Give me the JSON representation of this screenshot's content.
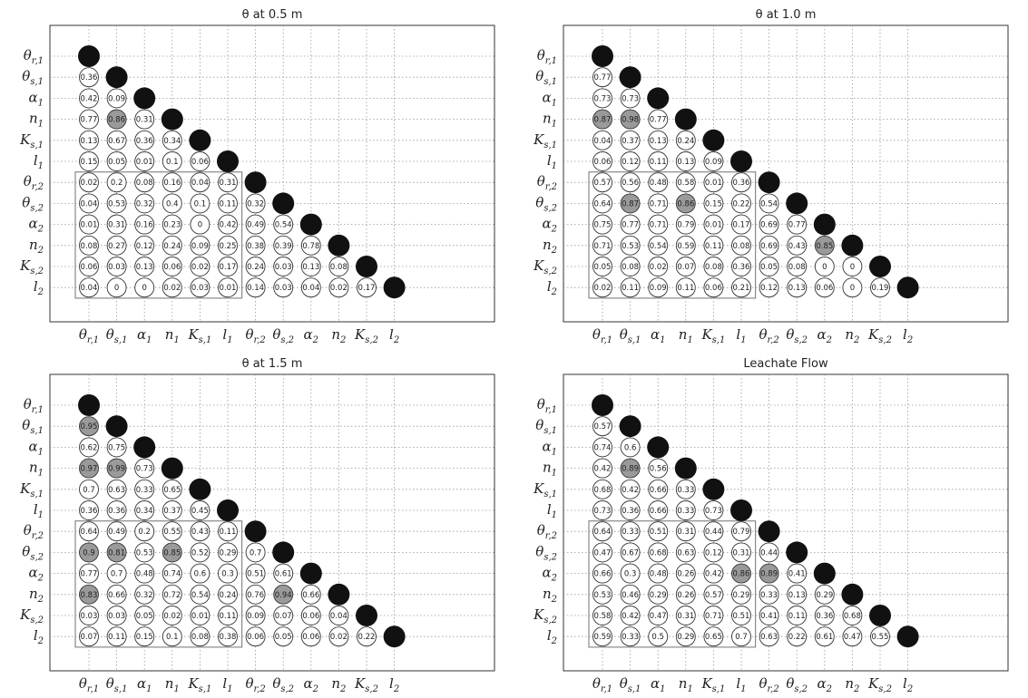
{
  "colors": {
    "diagonal": "#111111",
    "highlight": "#9a9a9a",
    "cell": "#ffffff",
    "grid": "#999999",
    "box": "#888888",
    "axes": "#333333"
  },
  "chart_data": [
    {
      "type": "heatmap",
      "title": "θ at 0.5 m",
      "labels": [
        "θr,1",
        "θs,1",
        "α1",
        "n1",
        "Ks,1",
        "l1",
        "θr,2",
        "θs,2",
        "α2",
        "n2",
        "Ks,2",
        "l2"
      ],
      "rows": [
        [],
        [
          0.36
        ],
        [
          0.42,
          0.09
        ],
        [
          0.77,
          0.86,
          0.31
        ],
        [
          0.13,
          0.67,
          0.36,
          0.34
        ],
        [
          0.15,
          0.05,
          0.01,
          0.1,
          0.06
        ],
        [
          0.02,
          0.2,
          0.08,
          0.16,
          0.04,
          0.31
        ],
        [
          0.04,
          0.53,
          0.32,
          0.4,
          0.1,
          0.11,
          0.32
        ],
        [
          0.01,
          0.31,
          0.16,
          0.23,
          0.0,
          0.42,
          0.49,
          0.54
        ],
        [
          0.08,
          0.27,
          0.12,
          0.24,
          0.09,
          0.25,
          0.38,
          0.39,
          0.78
        ],
        [
          0.06,
          0.03,
          0.13,
          0.06,
          0.02,
          0.17,
          0.24,
          0.03,
          0.13,
          0.08
        ],
        [
          0.04,
          0.0,
          0.0,
          0.02,
          0.03,
          0.01,
          0.14,
          0.03,
          0.04,
          0.02,
          0.17
        ]
      ],
      "highlighted": [
        [
          3,
          1
        ]
      ],
      "grid": true
    },
    {
      "type": "heatmap",
      "title": "θ at 1.0 m",
      "labels": [
        "θr,1",
        "θs,1",
        "α1",
        "n1",
        "Ks,1",
        "l1",
        "θr,2",
        "θs,2",
        "α2",
        "n2",
        "Ks,2",
        "l2"
      ],
      "rows": [
        [],
        [
          0.77
        ],
        [
          0.73,
          0.73
        ],
        [
          0.87,
          0.98,
          0.77
        ],
        [
          0.04,
          0.37,
          0.13,
          0.24
        ],
        [
          0.06,
          0.12,
          0.11,
          0.13,
          0.09
        ],
        [
          0.57,
          0.56,
          0.48,
          0.58,
          0.01,
          0.36
        ],
        [
          0.64,
          0.87,
          0.71,
          0.86,
          0.15,
          0.22,
          0.54
        ],
        [
          0.75,
          0.77,
          0.71,
          0.79,
          0.01,
          0.17,
          0.69,
          0.77
        ],
        [
          0.71,
          0.53,
          0.54,
          0.59,
          0.11,
          0.08,
          0.69,
          0.43,
          0.85
        ],
        [
          0.05,
          0.08,
          0.02,
          0.07,
          0.08,
          0.36,
          0.05,
          0.08,
          0.0,
          0.0
        ],
        [
          0.02,
          0.11,
          0.09,
          0.11,
          0.06,
          0.21,
          0.12,
          0.13,
          0.06,
          0.0,
          0.19
        ]
      ],
      "highlighted": [
        [
          3,
          0
        ],
        [
          3,
          1
        ],
        [
          7,
          1
        ],
        [
          7,
          3
        ],
        [
          9,
          8
        ]
      ],
      "grid": true
    },
    {
      "type": "heatmap",
      "title": "θ at 1.5 m",
      "labels": [
        "θr,1",
        "θs,1",
        "α1",
        "n1",
        "Ks,1",
        "l1",
        "θr,2",
        "θs,2",
        "α2",
        "n2",
        "Ks,2",
        "l2"
      ],
      "rows": [
        [],
        [
          0.95
        ],
        [
          0.62,
          0.75
        ],
        [
          0.97,
          0.99,
          0.73
        ],
        [
          0.7,
          0.63,
          0.33,
          0.65
        ],
        [
          0.36,
          0.36,
          0.34,
          0.37,
          0.45
        ],
        [
          0.64,
          0.49,
          0.2,
          0.55,
          0.43,
          0.11
        ],
        [
          0.9,
          0.81,
          0.53,
          0.85,
          0.52,
          0.29,
          0.7
        ],
        [
          0.77,
          0.7,
          0.48,
          0.74,
          0.6,
          0.3,
          0.51,
          0.61
        ],
        [
          0.83,
          0.66,
          0.32,
          0.72,
          0.54,
          0.24,
          0.76,
          0.94,
          0.66
        ],
        [
          0.03,
          0.03,
          0.05,
          0.02,
          0.01,
          0.11,
          0.09,
          0.07,
          0.06,
          0.04
        ],
        [
          0.07,
          0.11,
          0.15,
          0.1,
          0.08,
          0.38,
          0.06,
          0.05,
          0.06,
          0.02,
          0.22
        ]
      ],
      "highlighted": [
        [
          1,
          0
        ],
        [
          3,
          0
        ],
        [
          3,
          1
        ],
        [
          7,
          0
        ],
        [
          7,
          1
        ],
        [
          7,
          3
        ],
        [
          9,
          0
        ],
        [
          9,
          7
        ]
      ],
      "grid": true
    },
    {
      "type": "heatmap",
      "title": "Leachate Flow",
      "labels": [
        "θr,1",
        "θs,1",
        "α1",
        "n1",
        "Ks,1",
        "l1",
        "θr,2",
        "θs,2",
        "α2",
        "n2",
        "Ks,2",
        "l2"
      ],
      "rows": [
        [],
        [
          0.57
        ],
        [
          0.74,
          0.6
        ],
        [
          0.42,
          0.89,
          0.56
        ],
        [
          0.68,
          0.42,
          0.66,
          0.33
        ],
        [
          0.73,
          0.36,
          0.66,
          0.33,
          0.73
        ],
        [
          0.64,
          0.33,
          0.51,
          0.31,
          0.44,
          0.79
        ],
        [
          0.47,
          0.67,
          0.68,
          0.63,
          0.12,
          0.31,
          0.44
        ],
        [
          0.66,
          0.3,
          0.48,
          0.26,
          0.42,
          0.86,
          0.89,
          0.41
        ],
        [
          0.53,
          0.46,
          0.29,
          0.26,
          0.57,
          0.29,
          0.33,
          0.13,
          0.29
        ],
        [
          0.58,
          0.42,
          0.47,
          0.31,
          0.71,
          0.51,
          0.41,
          0.11,
          0.36,
          0.68
        ],
        [
          0.59,
          0.33,
          0.5,
          0.29,
          0.65,
          0.7,
          0.63,
          0.22,
          0.61,
          0.47,
          0.55
        ]
      ],
      "highlighted": [
        [
          3,
          1
        ],
        [
          8,
          5
        ],
        [
          8,
          6
        ]
      ],
      "grid": true
    }
  ]
}
